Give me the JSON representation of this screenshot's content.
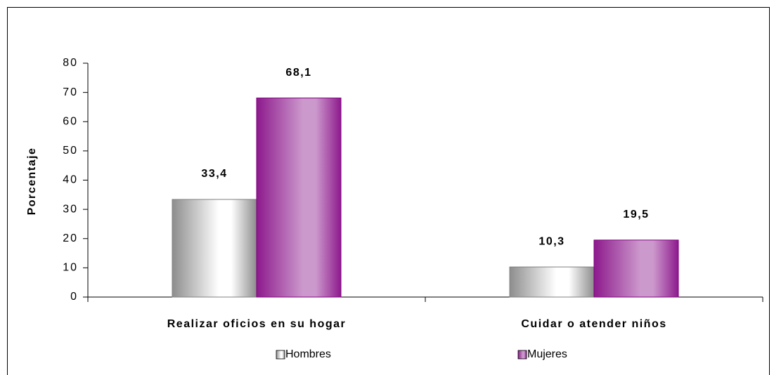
{
  "chart_data": {
    "type": "bar",
    "categories": [
      "Realizar oficios en su hogar",
      "Cuidar o atender niños"
    ],
    "series": [
      {
        "name": "Hombres",
        "color": "#808080",
        "values": [
          33.4,
          10.3
        ],
        "value_labels": [
          "33,4",
          "10,3"
        ]
      },
      {
        "name": "Mujeres",
        "color": "#800080",
        "values": [
          68.1,
          19.5
        ],
        "value_labels": [
          "68,1",
          "19,5"
        ]
      }
    ],
    "y_label": "Porcentaje",
    "ylim": [
      0,
      80
    ],
    "yticks": [
      0,
      10,
      20,
      30,
      40,
      50,
      60,
      70,
      80
    ],
    "grid": false,
    "legend": "bottom"
  }
}
